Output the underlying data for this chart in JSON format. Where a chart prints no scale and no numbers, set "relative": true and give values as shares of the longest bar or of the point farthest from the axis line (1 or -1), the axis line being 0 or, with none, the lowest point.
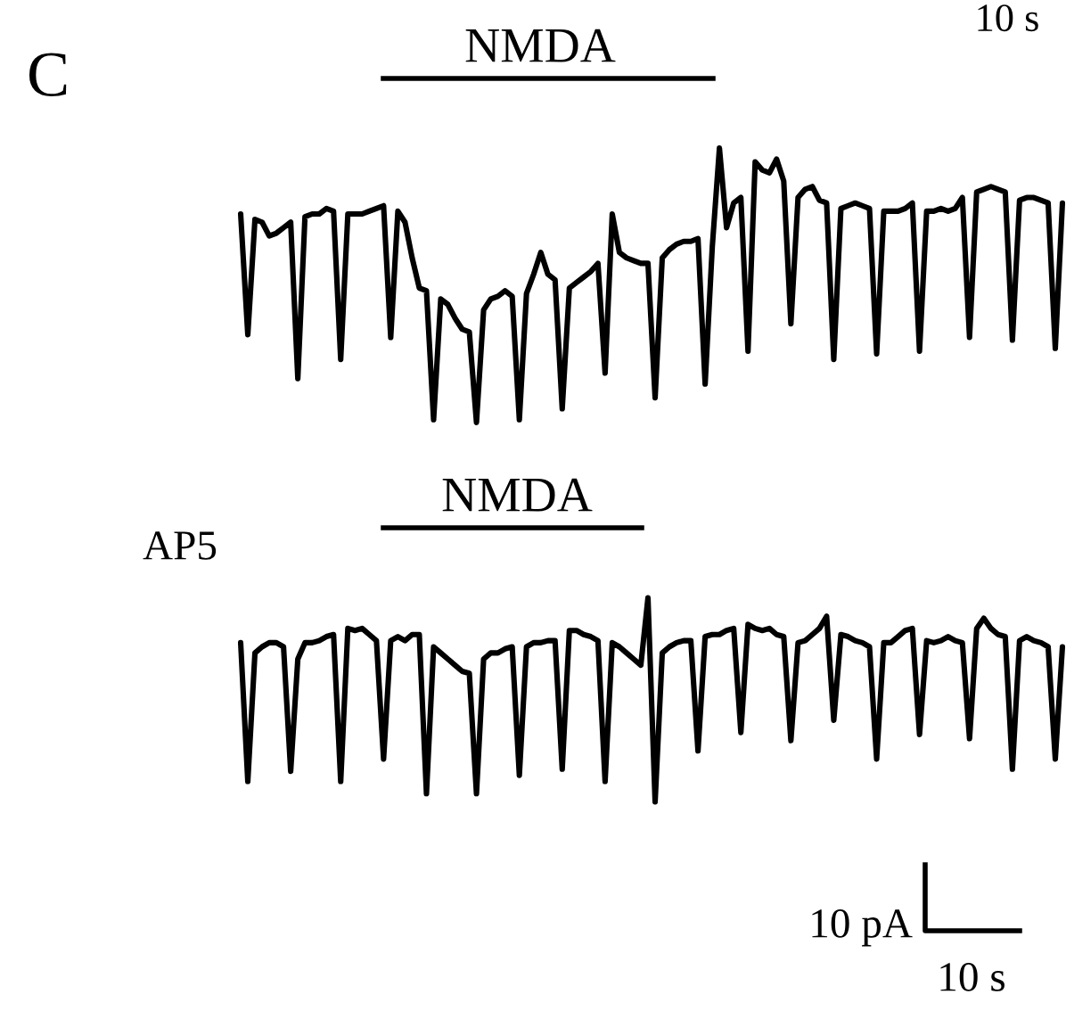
{
  "chart_data": [
    {
      "type": "line",
      "relative": true,
      "annotations": [
        "C",
        "NMDA",
        "10 s"
      ],
      "categories": [
        null,
        null,
        null,
        null,
        null,
        null,
        null,
        null,
        null,
        null,
        null,
        null,
        null,
        null,
        null,
        null,
        null,
        null,
        null,
        null,
        null,
        null,
        null,
        null,
        null,
        null,
        null,
        null,
        null,
        null,
        null,
        null,
        null,
        null,
        null,
        null,
        null,
        null,
        null,
        null,
        null,
        null,
        null,
        null,
        null,
        null,
        null,
        null,
        null,
        null,
        null,
        null,
        null,
        null,
        null,
        null,
        null,
        null,
        null,
        null,
        null,
        null,
        null,
        null,
        null,
        null,
        null,
        null,
        null,
        null,
        null,
        null,
        null,
        null,
        null,
        null,
        null,
        null,
        null,
        null,
        null,
        null,
        null,
        null,
        null,
        null,
        null,
        null,
        null,
        null,
        null,
        null,
        null,
        null,
        null,
        null,
        null,
        null,
        null,
        null,
        null,
        null,
        null,
        null,
        null,
        null,
        null,
        null,
        null,
        null,
        null,
        null,
        null,
        null,
        null,
        null
      ],
      "series": [
        {
          "color": "#000000",
          "values": [
            0.76,
            0.32,
            0.74,
            0.73,
            0.68,
            0.69,
            0.71,
            0.73,
            0.16,
            0.75,
            0.76,
            0.76,
            0.78,
            0.77,
            0.23,
            0.76,
            0.76,
            0.76,
            0.77,
            0.78,
            0.79,
            0.31,
            0.77,
            0.73,
            0.6,
            0.49,
            0.48,
            0.01,
            0.45,
            0.43,
            0.38,
            0.34,
            0.33,
            0,
            0.41,
            0.45,
            0.46,
            0.48,
            0.46,
            0.01,
            0.47,
            0.54,
            0.62,
            0.54,
            0.52,
            0.05,
            0.49,
            0.51,
            0.53,
            0.55,
            0.58,
            0.18,
            0.76,
            0.62,
            0.6,
            0.59,
            0.58,
            0.58,
            0.09,
            0.6,
            0.63,
            0.65,
            0.66,
            0.66,
            0.67,
            0.14,
            0.64,
            1,
            0.71,
            0.8,
            0.82,
            0.26,
            0.95,
            0.92,
            0.91,
            0.96,
            0.88,
            0.36,
            0.82,
            0.85,
            0.86,
            0.81,
            0.8,
            0.23,
            0.78,
            0.79,
            0.8,
            0.79,
            0.78,
            0.25,
            0.77,
            0.77,
            0.77,
            0.78,
            0.8,
            0.26,
            0.77,
            0.77,
            0.78,
            0.77,
            0.78,
            0.82,
            0.31,
            0.84,
            0.85,
            0.86,
            0.85,
            0.84,
            0.3,
            0.81,
            0.82,
            0.82,
            0.81,
            0.8,
            0.27,
            0.8
          ]
        }
      ]
    },
    {
      "type": "line",
      "relative": true,
      "annotations": [
        "NMDA",
        "AP5",
        "10 pA",
        "10 s"
      ],
      "categories": [
        null,
        null,
        null,
        null,
        null,
        null,
        null,
        null,
        null,
        null,
        null,
        null,
        null,
        null,
        null,
        null,
        null,
        null,
        null,
        null,
        null,
        null,
        null,
        null,
        null,
        null,
        null,
        null,
        null,
        null,
        null,
        null,
        null,
        null,
        null,
        null,
        null,
        null,
        null,
        null,
        null,
        null,
        null,
        null,
        null,
        null,
        null,
        null,
        null,
        null,
        null,
        null,
        null,
        null,
        null,
        null,
        null,
        null,
        null,
        null,
        null,
        null,
        null,
        null,
        null,
        null,
        null,
        null,
        null,
        null,
        null,
        null,
        null,
        null,
        null,
        null,
        null,
        null,
        null,
        null,
        null,
        null,
        null,
        null,
        null,
        null,
        null,
        null,
        null,
        null,
        null,
        null,
        null,
        null,
        null,
        null,
        null,
        null,
        null,
        null,
        null,
        null,
        null,
        null,
        null,
        null,
        null,
        null,
        null,
        null,
        null,
        null,
        null,
        null,
        null,
        null
      ],
      "series": [
        {
          "color": "#000000",
          "values": [
            0.78,
            0.1,
            0.73,
            0.76,
            0.78,
            0.78,
            0.76,
            0.15,
            0.7,
            0.78,
            0.78,
            0.79,
            0.81,
            0.82,
            0.1,
            0.85,
            0.84,
            0.85,
            0.82,
            0.79,
            0.21,
            0.79,
            0.81,
            0.79,
            0.82,
            0.82,
            0.04,
            0.76,
            0.73,
            0.7,
            0.67,
            0.64,
            0.63,
            0.04,
            0.7,
            0.73,
            0.73,
            0.75,
            0.76,
            0.13,
            0.76,
            0.78,
            0.78,
            0.79,
            0.79,
            0.16,
            0.84,
            0.84,
            0.82,
            0.81,
            0.79,
            0.1,
            0.78,
            0.76,
            0.73,
            0.7,
            0.67,
            1,
            0,
            0.73,
            0.76,
            0.78,
            0.79,
            0.79,
            0.25,
            0.81,
            0.82,
            0.82,
            0.84,
            0.85,
            0.34,
            0.87,
            0.85,
            0.84,
            0.85,
            0.82,
            0.81,
            0.3,
            0.78,
            0.79,
            0.82,
            0.85,
            0.91,
            0.4,
            0.82,
            0.81,
            0.79,
            0.78,
            0.76,
            0.21,
            0.78,
            0.78,
            0.81,
            0.84,
            0.85,
            0.33,
            0.79,
            0.78,
            0.79,
            0.81,
            0.79,
            0.78,
            0.31,
            0.85,
            0.9,
            0.85,
            0.82,
            0.81,
            0.16,
            0.79,
            0.81,
            0.79,
            0.78,
            0.76,
            0.21,
            0.76
          ]
        }
      ]
    }
  ]
}
